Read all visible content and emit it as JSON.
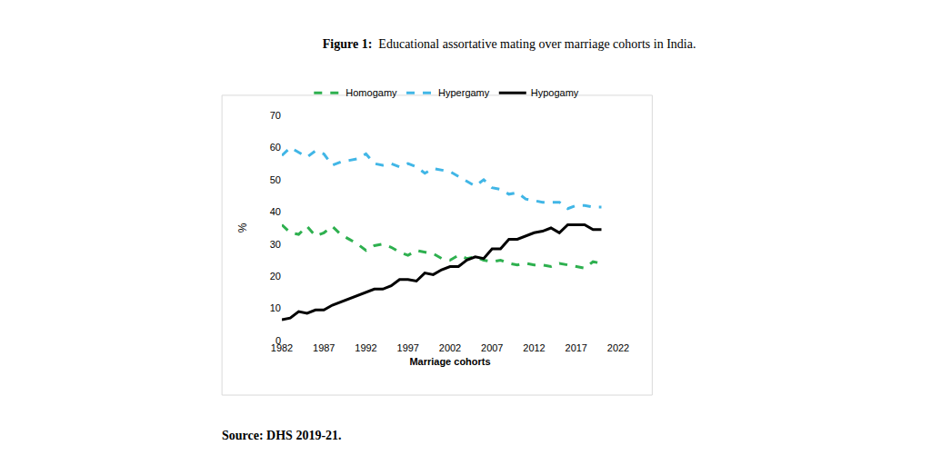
{
  "chart_data": {
    "type": "line",
    "title": "Figure 1:  Educational assortative mating over marriage cohorts in India.",
    "annotations": [
      "Source: DHS 2019-21."
    ],
    "xlabel": "Marriage cohorts",
    "ylabel": "%",
    "x": [
      1982,
      1983,
      1984,
      1985,
      1986,
      1987,
      1988,
      1989,
      1990,
      1991,
      1992,
      1993,
      1994,
      1995,
      1996,
      1997,
      1998,
      1999,
      2000,
      2001,
      2002,
      2003,
      2004,
      2005,
      2006,
      2007,
      2008,
      2009,
      2010,
      2011,
      2012,
      2013,
      2014,
      2015,
      2016,
      2017,
      2018,
      2019,
      2020
    ],
    "series": [
      {
        "name": "Homogamy",
        "color": "#2eb04f",
        "line_style": "dashed",
        "values": [
          36,
          33.5,
          33,
          35.5,
          32.5,
          33.5,
          35.5,
          33,
          31.5,
          30,
          28,
          29.5,
          30,
          29,
          27.5,
          26.5,
          28,
          27.5,
          27,
          25.5,
          25,
          26.5,
          25.5,
          26,
          25,
          24.5,
          25,
          24,
          23.5,
          24,
          23.5,
          23.5,
          23,
          24,
          23.5,
          23,
          22.5,
          24.5,
          24
        ]
      },
      {
        "name": "Hypergamy",
        "color": "#41b6e6",
        "line_style": "dashed",
        "values": [
          57.5,
          60,
          58.5,
          57,
          59,
          58,
          54.5,
          55.5,
          56,
          56.5,
          58,
          55,
          54.5,
          55,
          54,
          55,
          54,
          52,
          53.5,
          53,
          52.5,
          51,
          49.5,
          48,
          50,
          47.5,
          47,
          45.5,
          46,
          44,
          43.5,
          43,
          43,
          43,
          41,
          42,
          42,
          41.5,
          41.5
        ]
      },
      {
        "name": "Hypogamy",
        "color": "#000000",
        "line_style": "solid",
        "values": [
          6.5,
          7,
          9,
          8.5,
          9.5,
          9.5,
          11,
          12,
          13,
          14,
          15,
          16,
          16,
          17,
          19,
          19,
          18.5,
          21,
          20.5,
          22,
          23,
          23,
          25,
          26,
          25.5,
          28.5,
          28.5,
          31.5,
          31.5,
          32.5,
          33.5,
          34,
          35,
          33.5,
          36,
          36,
          36,
          34.5,
          34.5
        ]
      }
    ],
    "xlim": [
      1982,
      2022
    ],
    "xticks": [
      1982,
      1987,
      1992,
      1997,
      2002,
      2007,
      2012,
      2017,
      2022
    ],
    "ylim": [
      0,
      70
    ],
    "yticks": [
      0,
      10,
      20,
      30,
      40,
      50,
      60,
      70
    ],
    "grid": false,
    "legend": "top"
  }
}
